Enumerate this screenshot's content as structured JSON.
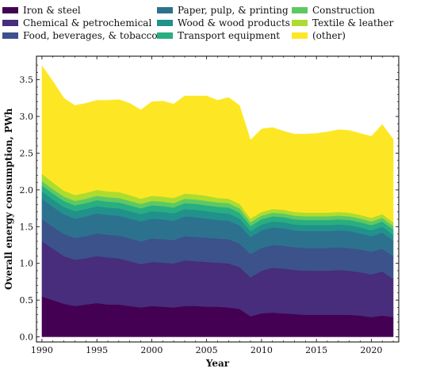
{
  "chart_data": {
    "type": "area",
    "stacked": true,
    "xlabel": "Year",
    "ylabel": "Overall energy consumption, PWh",
    "xlim": [
      1989.5,
      2022.5
    ],
    "ylim": [
      -0.07,
      3.82
    ],
    "xticks": [
      1990,
      1995,
      2000,
      2005,
      2010,
      2015,
      2020
    ],
    "yticks": [
      0.0,
      0.5,
      1.0,
      1.5,
      2.0,
      2.5,
      3.0,
      3.5
    ],
    "legend_position": "top, outside plot, 3 columns",
    "x": [
      1990,
      1991,
      1992,
      1993,
      1994,
      1995,
      1996,
      1997,
      1998,
      1999,
      2000,
      2001,
      2002,
      2003,
      2004,
      2005,
      2006,
      2007,
      2008,
      2009,
      2010,
      2011,
      2012,
      2013,
      2014,
      2015,
      2016,
      2017,
      2018,
      2019,
      2020,
      2021,
      2022
    ],
    "series": [
      {
        "name": "Iron & steel",
        "color": "#440154",
        "values": [
          0.55,
          0.5,
          0.45,
          0.42,
          0.44,
          0.46,
          0.44,
          0.44,
          0.42,
          0.4,
          0.42,
          0.41,
          0.4,
          0.42,
          0.42,
          0.41,
          0.41,
          0.4,
          0.38,
          0.28,
          0.32,
          0.33,
          0.32,
          0.31,
          0.3,
          0.3,
          0.3,
          0.3,
          0.3,
          0.29,
          0.27,
          0.29,
          0.27
        ]
      },
      {
        "name": "Chemical & petrochemical",
        "color": "#472d7b",
        "values": [
          0.75,
          0.7,
          0.65,
          0.63,
          0.63,
          0.64,
          0.64,
          0.63,
          0.61,
          0.59,
          0.6,
          0.6,
          0.6,
          0.62,
          0.61,
          0.61,
          0.6,
          0.6,
          0.57,
          0.53,
          0.58,
          0.61,
          0.61,
          0.6,
          0.6,
          0.6,
          0.6,
          0.61,
          0.6,
          0.59,
          0.58,
          0.6,
          0.52
        ]
      },
      {
        "name": "Food, beverages, & tobacco",
        "color": "#3b528b",
        "values": [
          0.3,
          0.3,
          0.3,
          0.3,
          0.3,
          0.31,
          0.31,
          0.31,
          0.31,
          0.31,
          0.32,
          0.32,
          0.32,
          0.33,
          0.33,
          0.33,
          0.33,
          0.33,
          0.32,
          0.32,
          0.31,
          0.31,
          0.31,
          0.31,
          0.31,
          0.31,
          0.31,
          0.31,
          0.31,
          0.31,
          0.31,
          0.31,
          0.31
        ]
      },
      {
        "name": "Paper, pulp, & printing",
        "color": "#2c728e",
        "values": [
          0.28,
          0.27,
          0.27,
          0.26,
          0.27,
          0.27,
          0.27,
          0.27,
          0.27,
          0.27,
          0.27,
          0.27,
          0.26,
          0.27,
          0.27,
          0.26,
          0.25,
          0.25,
          0.25,
          0.23,
          0.24,
          0.24,
          0.24,
          0.23,
          0.23,
          0.23,
          0.23,
          0.23,
          0.23,
          0.22,
          0.21,
          0.22,
          0.21
        ]
      },
      {
        "name": "Wood & wood products",
        "color": "#21918c",
        "values": [
          0.1,
          0.1,
          0.1,
          0.1,
          0.1,
          0.1,
          0.1,
          0.1,
          0.1,
          0.1,
          0.1,
          0.1,
          0.1,
          0.1,
          0.1,
          0.1,
          0.1,
          0.1,
          0.09,
          0.08,
          0.08,
          0.08,
          0.08,
          0.08,
          0.08,
          0.08,
          0.08,
          0.08,
          0.08,
          0.08,
          0.08,
          0.08,
          0.08
        ]
      },
      {
        "name": "Transport equipment",
        "color": "#28ae80",
        "values": [
          0.08,
          0.08,
          0.08,
          0.08,
          0.08,
          0.08,
          0.08,
          0.08,
          0.08,
          0.08,
          0.08,
          0.08,
          0.08,
          0.08,
          0.08,
          0.08,
          0.08,
          0.08,
          0.08,
          0.07,
          0.07,
          0.07,
          0.07,
          0.07,
          0.07,
          0.07,
          0.07,
          0.07,
          0.07,
          0.07,
          0.07,
          0.07,
          0.07
        ]
      },
      {
        "name": "Construction",
        "color": "#5ec962",
        "values": [
          0.06,
          0.06,
          0.06,
          0.06,
          0.06,
          0.06,
          0.06,
          0.06,
          0.06,
          0.06,
          0.06,
          0.06,
          0.06,
          0.06,
          0.06,
          0.06,
          0.06,
          0.06,
          0.06,
          0.05,
          0.05,
          0.05,
          0.05,
          0.05,
          0.05,
          0.05,
          0.05,
          0.05,
          0.05,
          0.05,
          0.05,
          0.05,
          0.05
        ]
      },
      {
        "name": "Textile & leather",
        "color": "#addc30",
        "values": [
          0.1,
          0.09,
          0.08,
          0.08,
          0.08,
          0.08,
          0.08,
          0.08,
          0.08,
          0.07,
          0.07,
          0.07,
          0.07,
          0.07,
          0.07,
          0.07,
          0.06,
          0.06,
          0.06,
          0.05,
          0.05,
          0.05,
          0.05,
          0.05,
          0.05,
          0.05,
          0.05,
          0.05,
          0.05,
          0.05,
          0.05,
          0.05,
          0.05
        ]
      },
      {
        "name": "(other)",
        "color": "#fde725",
        "values": [
          1.47,
          1.38,
          1.26,
          1.22,
          1.22,
          1.22,
          1.24,
          1.26,
          1.25,
          1.21,
          1.28,
          1.3,
          1.28,
          1.33,
          1.34,
          1.36,
          1.33,
          1.38,
          1.34,
          1.07,
          1.13,
          1.11,
          1.07,
          1.06,
          1.07,
          1.08,
          1.1,
          1.12,
          1.12,
          1.11,
          1.11,
          1.22,
          1.13
        ]
      }
    ]
  }
}
